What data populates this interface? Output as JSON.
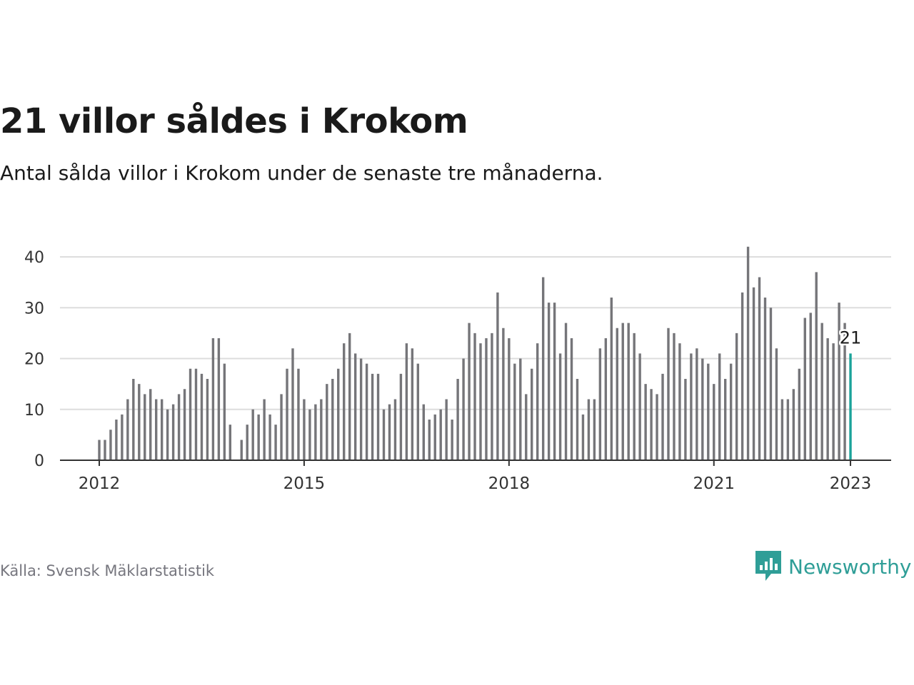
{
  "header": {
    "title": "21 villor såldes i Krokom",
    "subtitle": "Antal sålda villor i Krokom under de senaste tre månaderna."
  },
  "footer": {
    "source": "Källa: Svensk Mäklarstatistik",
    "brand": "Newsworthy",
    "brand_icon": "newsworthy-logo-icon"
  },
  "colors": {
    "bar": "#757579",
    "highlight": "#1aa39a",
    "grid": "#dddddd",
    "axis": "#333333",
    "text": "#1a1a1a",
    "brand": "#2f9e97"
  },
  "chart_data": {
    "type": "bar",
    "x_start": "2012-01",
    "x_end": "2023-01",
    "xticks": [
      "2012",
      "2015",
      "2018",
      "2021",
      "2023"
    ],
    "yticks": [
      0,
      10,
      20,
      30,
      40
    ],
    "ylim": [
      0,
      42
    ],
    "grid": true,
    "highlight_label": "21",
    "values": [
      4,
      4,
      6,
      8,
      9,
      12,
      16,
      15,
      13,
      14,
      12,
      12,
      10,
      11,
      13,
      14,
      18,
      18,
      17,
      16,
      24,
      24,
      19,
      7,
      0,
      4,
      7,
      10,
      9,
      12,
      9,
      7,
      13,
      18,
      22,
      18,
      12,
      10,
      11,
      12,
      15,
      16,
      18,
      23,
      25,
      21,
      20,
      19,
      17,
      17,
      10,
      11,
      12,
      17,
      23,
      22,
      19,
      11,
      8,
      9,
      10,
      12,
      8,
      16,
      20,
      27,
      25,
      23,
      24,
      25,
      33,
      26,
      24,
      19,
      20,
      13,
      18,
      23,
      36,
      31,
      31,
      21,
      27,
      24,
      16,
      9,
      12,
      12,
      22,
      24,
      32,
      26,
      27,
      27,
      25,
      21,
      15,
      14,
      13,
      17,
      26,
      25,
      23,
      16,
      21,
      22,
      20,
      19,
      15,
      21,
      16,
      19,
      25,
      33,
      42,
      34,
      36,
      32,
      30,
      22,
      12,
      12,
      14,
      18,
      28,
      29,
      37,
      27,
      24,
      23,
      31,
      27,
      21
    ]
  }
}
